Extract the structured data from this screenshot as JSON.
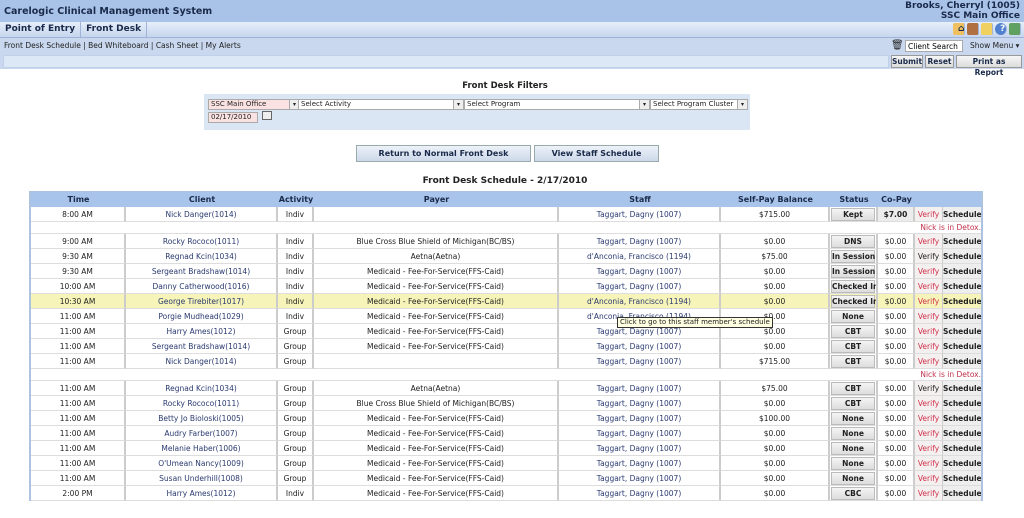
{
  "app": {
    "title": "Carelogic Clinical Management System",
    "user": "Brooks, Cherryl (1005)",
    "office": "SSC Main Office"
  },
  "nav": {
    "tabs": [
      "Point of Entry",
      "Front Desk"
    ]
  },
  "links": [
    "Front Desk Schedule",
    "Bed Whiteboard",
    "Cash Sheet",
    "My Alerts"
  ],
  "client_search": "Client Search",
  "show_menu": "Show Menu ▾",
  "actions": {
    "submit": "Submit",
    "reset": "Reset",
    "print": "Print as Report"
  },
  "filters": {
    "title": "Front Desk Filters",
    "office": "SSC Main Office",
    "activity": "Select Activity",
    "program": "Select Program",
    "cluster": "Select Program Cluster",
    "date": "02/17/2010"
  },
  "buttons": {
    "return": "Return to Normal Front Desk",
    "staff_schedule": "View Staff Schedule"
  },
  "schedule": {
    "title": "Front Desk Schedule - 2/17/2010",
    "columns": [
      "Time",
      "Client",
      "Activity",
      "Payer",
      "Staff",
      "Self-Pay Balance",
      "Status",
      "Co-Pay"
    ],
    "verify_label": "Verify",
    "schedule_label": "Schedule",
    "rows": [
      {
        "time": "8:00 AM",
        "client": "Nick Danger(1014)",
        "activity": "Indiv",
        "payer": "",
        "staff": "Taggart, Dagny (1007)",
        "balance": "$715.00",
        "status": "Kept",
        "copay": "$7.00",
        "verify_alert": true
      },
      {
        "note": "Nick is in Detox."
      },
      {
        "time": "9:00 AM",
        "client": "Rocky Rococo(1011)",
        "activity": "Indiv",
        "payer": "Blue Cross Blue Shield of Michigan(BC/BS)",
        "staff": "Taggart, Dagny (1007)",
        "balance": "$0.00",
        "status": "DNS",
        "copay": "$0.00",
        "verify_alert": true
      },
      {
        "time": "9:30 AM",
        "client": "Regnad Kcin(1034)",
        "activity": "Indiv",
        "payer": "Aetna(Aetna)",
        "staff": "d'Anconia, Francisco (1194)",
        "balance": "$75.00",
        "status": "In Session",
        "copay": "$0.00",
        "verify_alert": false
      },
      {
        "time": "9:30 AM",
        "client": "Sergeant Bradshaw(1014)",
        "activity": "Indiv",
        "payer": "Medicaid - Fee-For-Service(FFS-Caid)",
        "staff": "Taggart, Dagny (1007)",
        "balance": "$0.00",
        "status": "In Session",
        "copay": "$0.00",
        "verify_alert": true
      },
      {
        "time": "10:00 AM",
        "client": "Danny Catherwood(1016)",
        "activity": "Indiv",
        "payer": "Medicaid - Fee-For-Service(FFS-Caid)",
        "staff": "Taggart, Dagny (1007)",
        "balance": "$0.00",
        "status": "Checked In",
        "copay": "$0.00",
        "verify_alert": true
      },
      {
        "time": "10:30 AM",
        "client": "George Tirebiter(1017)",
        "activity": "Indiv",
        "payer": "Medicaid - Fee-For-Service(FFS-Caid)",
        "staff": "d'Anconia, Francisco (1194)",
        "balance": "$0.00",
        "status": "Checked In",
        "copay": "$0.00",
        "verify_alert": true,
        "highlighted": true
      },
      {
        "time": "11:00 AM",
        "client": "Porgie Mudhead(1029)",
        "activity": "Indiv",
        "payer": "Medicaid - Fee-For-Service(FFS-Caid)",
        "staff": "d'Anconia, Francisco (1194)",
        "balance": "$0.00",
        "status": "None",
        "copay": "$0.00",
        "verify_alert": true
      },
      {
        "time": "11:00 AM",
        "client": "Harry Ames(1012)",
        "activity": "Group",
        "payer": "Medicaid - Fee-For-Service(FFS-Caid)",
        "staff": "Taggart, Dagny (1007)",
        "balance": "$0.00",
        "status": "CBT",
        "copay": "$0.00",
        "verify_alert": true
      },
      {
        "time": "11:00 AM",
        "client": "Sergeant Bradshaw(1014)",
        "activity": "Group",
        "payer": "Medicaid - Fee-For-Service(FFS-Caid)",
        "staff": "Taggart, Dagny (1007)",
        "balance": "$0.00",
        "status": "CBT",
        "copay": "$0.00",
        "verify_alert": true
      },
      {
        "time": "11:00 AM",
        "client": "Nick Danger(1014)",
        "activity": "Group",
        "payer": "",
        "staff": "Taggart, Dagny (1007)",
        "balance": "$715.00",
        "status": "CBT",
        "copay": "$0.00",
        "verify_alert": true
      },
      {
        "note": "Nick is in Detox."
      },
      {
        "time": "11:00 AM",
        "client": "Regnad Kcin(1034)",
        "activity": "Group",
        "payer": "Aetna(Aetna)",
        "staff": "Taggart, Dagny (1007)",
        "balance": "$75.00",
        "status": "CBT",
        "copay": "$0.00",
        "verify_alert": false
      },
      {
        "time": "11:00 AM",
        "client": "Rocky Rococo(1011)",
        "activity": "Group",
        "payer": "Blue Cross Blue Shield of Michigan(BC/BS)",
        "staff": "Taggart, Dagny (1007)",
        "balance": "$0.00",
        "status": "CBT",
        "copay": "$0.00",
        "verify_alert": true
      },
      {
        "time": "11:00 AM",
        "client": "Betty Jo Bioloski(1005)",
        "activity": "Group",
        "payer": "Medicaid - Fee-For-Service(FFS-Caid)",
        "staff": "Taggart, Dagny (1007)",
        "balance": "$100.00",
        "status": "None",
        "copay": "$0.00",
        "verify_alert": true
      },
      {
        "time": "11:00 AM",
        "client": "Audry Farber(1007)",
        "activity": "Group",
        "payer": "Medicaid - Fee-For-Service(FFS-Caid)",
        "staff": "Taggart, Dagny (1007)",
        "balance": "$0.00",
        "status": "None",
        "copay": "$0.00",
        "verify_alert": true
      },
      {
        "time": "11:00 AM",
        "client": "Melanie Haber(1006)",
        "activity": "Group",
        "payer": "Medicaid - Fee-For-Service(FFS-Caid)",
        "staff": "Taggart, Dagny (1007)",
        "balance": "$0.00",
        "status": "None",
        "copay": "$0.00",
        "verify_alert": true
      },
      {
        "time": "11:00 AM",
        "client": "O'Umean Nancy(1009)",
        "activity": "Group",
        "payer": "Medicaid - Fee-For-Service(FFS-Caid)",
        "staff": "Taggart, Dagny (1007)",
        "balance": "$0.00",
        "status": "None",
        "copay": "$0.00",
        "verify_alert": true
      },
      {
        "time": "11:00 AM",
        "client": "Susan Underhill(1008)",
        "activity": "Group",
        "payer": "Medicaid - Fee-For-Service(FFS-Caid)",
        "staff": "Taggart, Dagny (1007)",
        "balance": "$0.00",
        "status": "None",
        "copay": "$0.00",
        "verify_alert": true
      },
      {
        "time": "2:00 PM",
        "client": "Harry Ames(1012)",
        "activity": "Indiv",
        "payer": "Medicaid - Fee-For-Service(FFS-Caid)",
        "staff": "Taggart, Dagny (1007)",
        "balance": "$0.00",
        "status": "CBC",
        "copay": "$0.00",
        "verify_alert": true
      }
    ]
  },
  "tooltip": "Click to go to this staff member's schedule",
  "colors": {
    "header": "#a9c2e8",
    "alert": "#d0304a",
    "highlight": "#f6f4b8"
  }
}
